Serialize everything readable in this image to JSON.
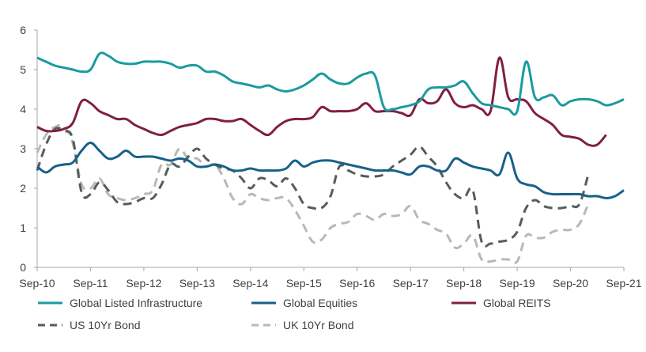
{
  "chart_data": {
    "type": "line",
    "title": "",
    "xlabel": "",
    "ylabel": "",
    "ylim": [
      0,
      6
    ],
    "yticks": [
      "0",
      "1",
      "2",
      "3",
      "4",
      "5",
      "6"
    ],
    "xticks": [
      "Sep-10",
      "Sep-11",
      "Sep-12",
      "Sep-13",
      "Sep-14",
      "Sep-15",
      "Sep-16",
      "Sep-17",
      "Sep-18",
      "Sep-19",
      "Sep-20",
      "Sep-21"
    ],
    "grid": false,
    "legend_position": "bottom",
    "series": [
      {
        "name": "Global Listed Infrastructure",
        "color": "#1a9ba0",
        "dash": "solid",
        "points": [
          [
            0,
            5.3
          ],
          [
            1,
            5.2
          ],
          [
            2,
            5.1
          ],
          [
            3,
            5.05
          ],
          [
            4,
            5.0
          ],
          [
            5,
            4.95
          ],
          [
            6,
            5.0
          ],
          [
            7,
            5.4
          ],
          [
            8,
            5.35
          ],
          [
            9,
            5.2
          ],
          [
            10,
            5.15
          ],
          [
            11,
            5.15
          ],
          [
            12,
            5.2
          ],
          [
            13,
            5.2
          ],
          [
            14,
            5.2
          ],
          [
            15,
            5.15
          ],
          [
            16,
            5.05
          ],
          [
            17,
            5.1
          ],
          [
            18,
            5.1
          ],
          [
            19,
            4.95
          ],
          [
            20,
            4.95
          ],
          [
            21,
            4.85
          ],
          [
            22,
            4.7
          ],
          [
            23,
            4.65
          ],
          [
            24,
            4.6
          ],
          [
            25,
            4.55
          ],
          [
            26,
            4.6
          ],
          [
            27,
            4.5
          ],
          [
            28,
            4.45
          ],
          [
            29,
            4.5
          ],
          [
            30,
            4.6
          ],
          [
            31,
            4.75
          ],
          [
            32,
            4.9
          ],
          [
            33,
            4.75
          ],
          [
            34,
            4.65
          ],
          [
            35,
            4.65
          ],
          [
            36,
            4.8
          ],
          [
            37,
            4.9
          ],
          [
            38,
            4.85
          ],
          [
            39,
            4.05
          ],
          [
            40,
            4.0
          ],
          [
            41,
            4.05
          ],
          [
            42,
            4.1
          ],
          [
            43,
            4.2
          ],
          [
            44,
            4.5
          ],
          [
            45,
            4.55
          ],
          [
            46,
            4.55
          ],
          [
            47,
            4.6
          ],
          [
            48,
            4.7
          ],
          [
            49,
            4.4
          ],
          [
            50,
            4.15
          ],
          [
            51,
            4.1
          ],
          [
            52,
            4.05
          ],
          [
            53,
            4.0
          ],
          [
            54,
            3.95
          ],
          [
            55,
            5.2
          ],
          [
            56,
            4.3
          ],
          [
            57,
            4.3
          ],
          [
            58,
            4.35
          ],
          [
            59,
            4.1
          ],
          [
            60,
            4.2
          ],
          [
            61,
            4.25
          ],
          [
            62,
            4.25
          ],
          [
            63,
            4.2
          ],
          [
            64,
            4.1
          ],
          [
            65,
            4.15
          ],
          [
            66,
            4.25
          ]
        ]
      },
      {
        "name": "Global Equities",
        "color": "#17618a",
        "dash": "solid",
        "points": [
          [
            0,
            2.55
          ],
          [
            1,
            2.4
          ],
          [
            2,
            2.55
          ],
          [
            3,
            2.6
          ],
          [
            4,
            2.65
          ],
          [
            5,
            2.95
          ],
          [
            6,
            3.15
          ],
          [
            7,
            2.95
          ],
          [
            8,
            2.75
          ],
          [
            9,
            2.8
          ],
          [
            10,
            2.95
          ],
          [
            11,
            2.8
          ],
          [
            12,
            2.8
          ],
          [
            13,
            2.8
          ],
          [
            14,
            2.75
          ],
          [
            15,
            2.7
          ],
          [
            16,
            2.75
          ],
          [
            17,
            2.7
          ],
          [
            18,
            2.55
          ],
          [
            19,
            2.55
          ],
          [
            20,
            2.6
          ],
          [
            21,
            2.55
          ],
          [
            22,
            2.45
          ],
          [
            23,
            2.45
          ],
          [
            24,
            2.5
          ],
          [
            25,
            2.45
          ],
          [
            26,
            2.45
          ],
          [
            27,
            2.45
          ],
          [
            28,
            2.5
          ],
          [
            29,
            2.7
          ],
          [
            30,
            2.55
          ],
          [
            31,
            2.65
          ],
          [
            32,
            2.7
          ],
          [
            33,
            2.7
          ],
          [
            34,
            2.65
          ],
          [
            35,
            2.6
          ],
          [
            36,
            2.55
          ],
          [
            37,
            2.5
          ],
          [
            38,
            2.45
          ],
          [
            39,
            2.45
          ],
          [
            40,
            2.45
          ],
          [
            41,
            2.4
          ],
          [
            42,
            2.35
          ],
          [
            43,
            2.55
          ],
          [
            44,
            2.55
          ],
          [
            45,
            2.45
          ],
          [
            46,
            2.45
          ],
          [
            47,
            2.75
          ],
          [
            48,
            2.65
          ],
          [
            49,
            2.55
          ],
          [
            50,
            2.5
          ],
          [
            51,
            2.45
          ],
          [
            52,
            2.35
          ],
          [
            53,
            2.9
          ],
          [
            54,
            2.25
          ],
          [
            55,
            2.1
          ],
          [
            56,
            2.05
          ],
          [
            57,
            1.9
          ],
          [
            58,
            1.85
          ],
          [
            59,
            1.85
          ],
          [
            60,
            1.85
          ],
          [
            61,
            1.85
          ],
          [
            62,
            1.8
          ],
          [
            63,
            1.8
          ],
          [
            64,
            1.75
          ],
          [
            65,
            1.8
          ],
          [
            66,
            1.95
          ]
        ]
      },
      {
        "name": "Global REITS",
        "color": "#7f1f45",
        "dash": "solid",
        "points": [
          [
            0,
            3.55
          ],
          [
            1,
            3.45
          ],
          [
            2,
            3.45
          ],
          [
            3,
            3.5
          ],
          [
            4,
            3.65
          ],
          [
            5,
            4.2
          ],
          [
            6,
            4.15
          ],
          [
            7,
            3.95
          ],
          [
            8,
            3.85
          ],
          [
            9,
            3.75
          ],
          [
            10,
            3.75
          ],
          [
            11,
            3.6
          ],
          [
            12,
            3.5
          ],
          [
            13,
            3.4
          ],
          [
            14,
            3.35
          ],
          [
            15,
            3.45
          ],
          [
            16,
            3.55
          ],
          [
            17,
            3.6
          ],
          [
            18,
            3.65
          ],
          [
            19,
            3.75
          ],
          [
            20,
            3.75
          ],
          [
            21,
            3.7
          ],
          [
            22,
            3.7
          ],
          [
            23,
            3.75
          ],
          [
            24,
            3.6
          ],
          [
            25,
            3.45
          ],
          [
            26,
            3.35
          ],
          [
            27,
            3.55
          ],
          [
            28,
            3.7
          ],
          [
            29,
            3.75
          ],
          [
            30,
            3.75
          ],
          [
            31,
            3.8
          ],
          [
            32,
            4.05
          ],
          [
            33,
            3.95
          ],
          [
            34,
            3.95
          ],
          [
            35,
            3.95
          ],
          [
            36,
            4.0
          ],
          [
            37,
            4.15
          ],
          [
            38,
            3.95
          ],
          [
            39,
            3.95
          ],
          [
            40,
            3.95
          ],
          [
            41,
            3.9
          ],
          [
            42,
            3.85
          ],
          [
            43,
            4.25
          ],
          [
            44,
            4.15
          ],
          [
            45,
            4.2
          ],
          [
            46,
            4.5
          ],
          [
            47,
            4.15
          ],
          [
            48,
            4.05
          ],
          [
            49,
            4.1
          ],
          [
            50,
            4.0
          ],
          [
            51,
            3.95
          ],
          [
            52,
            5.3
          ],
          [
            53,
            4.3
          ],
          [
            54,
            4.25
          ],
          [
            55,
            4.2
          ],
          [
            56,
            3.9
          ],
          [
            57,
            3.75
          ],
          [
            58,
            3.6
          ],
          [
            59,
            3.35
          ],
          [
            60,
            3.3
          ],
          [
            61,
            3.25
          ],
          [
            62,
            3.1
          ],
          [
            63,
            3.1
          ],
          [
            64,
            3.35
          ]
        ]
      },
      {
        "name": "US 10Yr Bond",
        "color": "#545d5d",
        "dash": "dashed",
        "points": [
          [
            0,
            2.45
          ],
          [
            1,
            3.1
          ],
          [
            2,
            3.5
          ],
          [
            3,
            3.45
          ],
          [
            4,
            3.25
          ],
          [
            5,
            1.9
          ],
          [
            6,
            1.85
          ],
          [
            7,
            2.15
          ],
          [
            8,
            1.95
          ],
          [
            9,
            1.65
          ],
          [
            10,
            1.6
          ],
          [
            11,
            1.65
          ],
          [
            12,
            1.75
          ],
          [
            13,
            1.75
          ],
          [
            14,
            2.1
          ],
          [
            15,
            2.6
          ],
          [
            16,
            2.55
          ],
          [
            17,
            2.8
          ],
          [
            18,
            3.0
          ],
          [
            19,
            2.75
          ],
          [
            20,
            2.6
          ],
          [
            21,
            2.5
          ],
          [
            22,
            2.45
          ],
          [
            23,
            2.25
          ],
          [
            24,
            2.0
          ],
          [
            25,
            2.25
          ],
          [
            26,
            2.2
          ],
          [
            27,
            2.05
          ],
          [
            28,
            2.25
          ],
          [
            29,
            2.0
          ],
          [
            30,
            1.6
          ],
          [
            31,
            1.5
          ],
          [
            32,
            1.5
          ],
          [
            33,
            1.8
          ],
          [
            34,
            2.55
          ],
          [
            35,
            2.45
          ],
          [
            36,
            2.35
          ],
          [
            37,
            2.3
          ],
          [
            38,
            2.3
          ],
          [
            39,
            2.35
          ],
          [
            40,
            2.55
          ],
          [
            41,
            2.7
          ],
          [
            42,
            2.85
          ],
          [
            43,
            3.05
          ],
          [
            44,
            2.8
          ],
          [
            45,
            2.55
          ],
          [
            46,
            2.15
          ],
          [
            47,
            1.85
          ],
          [
            48,
            1.75
          ],
          [
            49,
            1.95
          ],
          [
            50,
            0.65
          ],
          [
            51,
            0.6
          ],
          [
            52,
            0.65
          ],
          [
            53,
            0.7
          ],
          [
            54,
            0.9
          ],
          [
            55,
            1.5
          ],
          [
            56,
            1.7
          ],
          [
            57,
            1.55
          ],
          [
            58,
            1.5
          ],
          [
            59,
            1.5
          ],
          [
            60,
            1.55
          ],
          [
            61,
            1.6
          ],
          [
            62,
            2.35
          ]
        ]
      },
      {
        "name": "UK 10Yr Bond",
        "color": "#b8b8b8",
        "dash": "dashed",
        "points": [
          [
            0,
            2.9
          ],
          [
            1,
            3.35
          ],
          [
            2,
            3.55
          ],
          [
            3,
            3.55
          ],
          [
            4,
            3.15
          ],
          [
            5,
            2.1
          ],
          [
            6,
            2.0
          ],
          [
            7,
            2.25
          ],
          [
            8,
            1.85
          ],
          [
            9,
            1.75
          ],
          [
            10,
            1.7
          ],
          [
            11,
            1.75
          ],
          [
            12,
            1.85
          ],
          [
            13,
            1.95
          ],
          [
            14,
            2.6
          ],
          [
            15,
            2.6
          ],
          [
            16,
            3.0
          ],
          [
            17,
            2.75
          ],
          [
            18,
            2.75
          ],
          [
            19,
            2.55
          ],
          [
            20,
            2.6
          ],
          [
            21,
            2.25
          ],
          [
            22,
            1.75
          ],
          [
            23,
            1.6
          ],
          [
            24,
            1.85
          ],
          [
            25,
            1.75
          ],
          [
            26,
            1.7
          ],
          [
            27,
            1.75
          ],
          [
            28,
            1.75
          ],
          [
            29,
            1.45
          ],
          [
            30,
            1.05
          ],
          [
            31,
            0.65
          ],
          [
            32,
            0.7
          ],
          [
            33,
            1.0
          ],
          [
            34,
            1.1
          ],
          [
            35,
            1.15
          ],
          [
            36,
            1.35
          ],
          [
            37,
            1.3
          ],
          [
            38,
            1.2
          ],
          [
            39,
            1.35
          ],
          [
            40,
            1.3
          ],
          [
            41,
            1.35
          ],
          [
            42,
            1.55
          ],
          [
            43,
            1.2
          ],
          [
            44,
            1.1
          ],
          [
            45,
            0.95
          ],
          [
            46,
            0.85
          ],
          [
            47,
            0.5
          ],
          [
            48,
            0.6
          ],
          [
            49,
            0.8
          ],
          [
            50,
            0.2
          ],
          [
            51,
            0.15
          ],
          [
            52,
            0.2
          ],
          [
            53,
            0.2
          ],
          [
            54,
            0.15
          ],
          [
            55,
            0.8
          ],
          [
            56,
            0.75
          ],
          [
            57,
            0.75
          ],
          [
            58,
            0.9
          ],
          [
            59,
            0.95
          ],
          [
            60,
            0.95
          ],
          [
            61,
            1.1
          ],
          [
            62,
            1.6
          ]
        ]
      }
    ]
  }
}
